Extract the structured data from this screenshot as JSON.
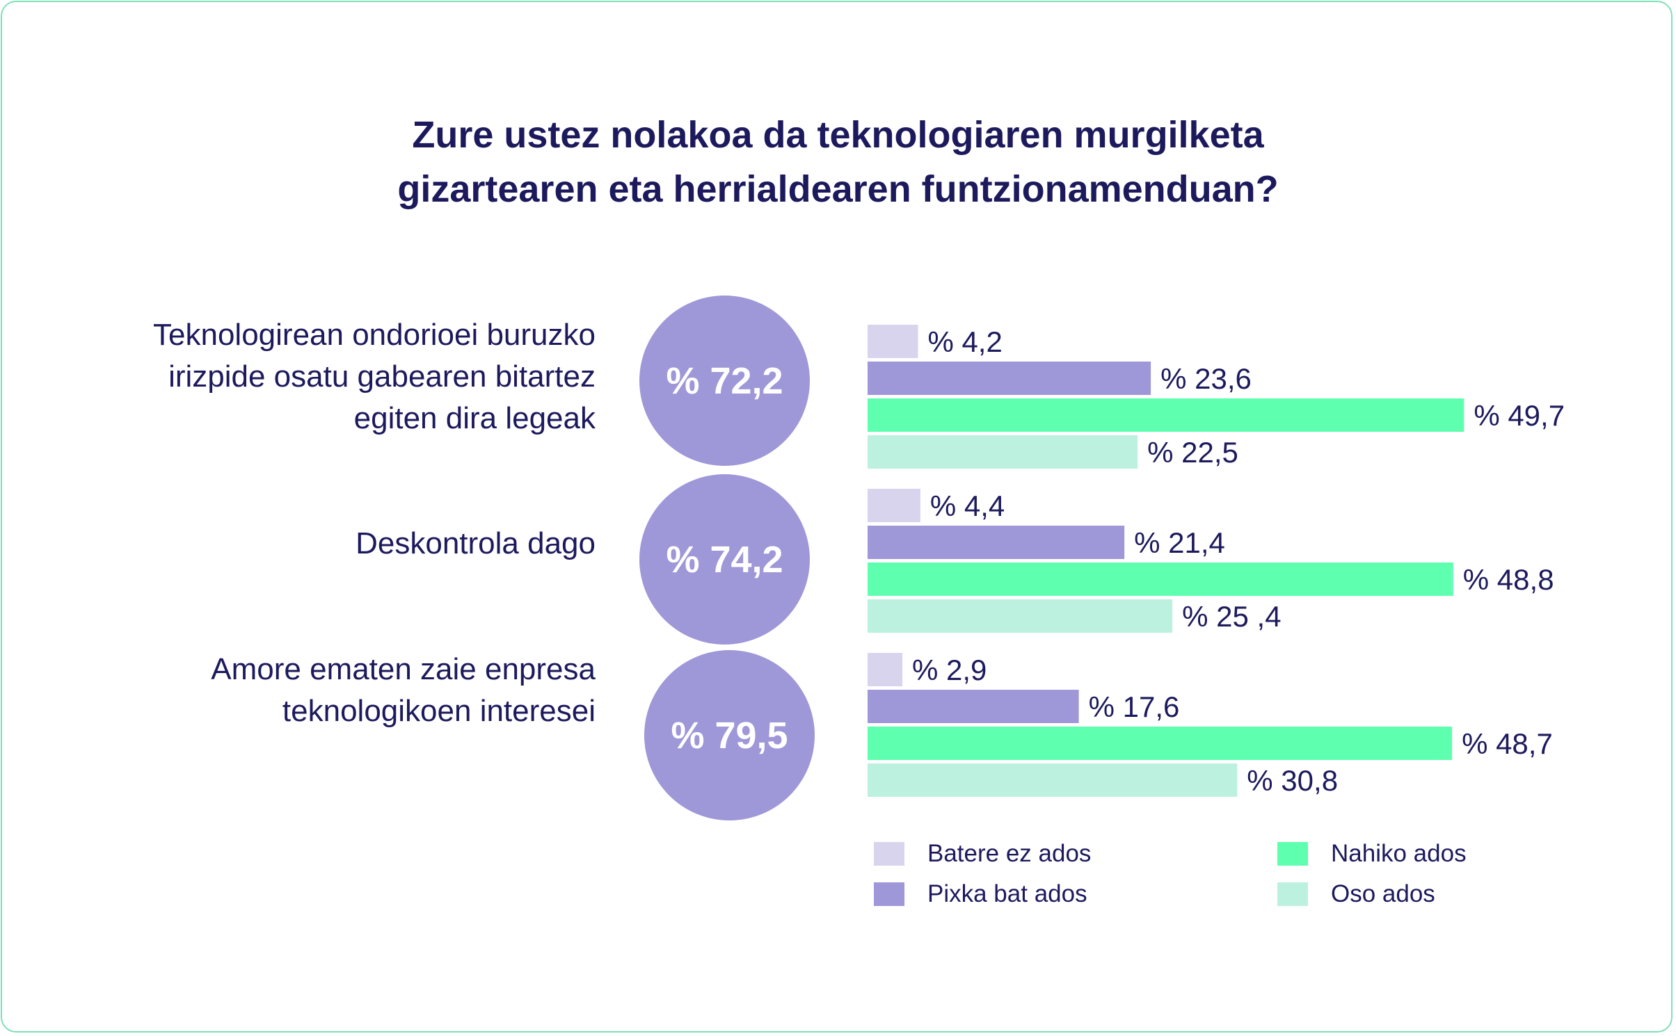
{
  "chart_data": {
    "type": "bar",
    "orientation": "horizontal",
    "title": "Zure ustez nolakoa da teknologiaren murgilketa gizartearen eta herrialdearen funtzionamenduan?",
    "title_lines": [
      "Zure ustez nolakoa da teknologiaren murgilketa",
      "gizartearen eta herrialdearen funtzionamenduan?"
    ],
    "categories": [
      "Teknologirean ondorioei buruzko irizpide osatu gabearen bitartez egiten dira legeak",
      "Deskontrola dago",
      "Amore ematen zaie enpresa teknologikoen interesei"
    ],
    "category_lines": [
      [
        "Teknologirean ondorioei buruzko",
        "irizpide osatu gabearen bitartez",
        "egiten dira legeak"
      ],
      [
        "Deskontrola dago"
      ],
      [
        "Amore ematen zaie enpresa",
        "teknologikoen interesei"
      ]
    ],
    "totals": [
      "% 72,2",
      "% 74,2",
      "% 79,5"
    ],
    "series": [
      {
        "name": "Batere ez ados",
        "color": "#d8d4ee",
        "values": [
          4.2,
          4.4,
          2.9
        ],
        "labels": [
          "% 4,2",
          "% 4,4",
          "% 2,9"
        ]
      },
      {
        "name": "Pixka bat ados",
        "color": "#9e97d8",
        "values": [
          23.6,
          21.4,
          17.6
        ],
        "labels": [
          "% 23,6",
          "% 21,4",
          "% 17,6"
        ]
      },
      {
        "name": "Nahiko ados",
        "color": "#5effaf",
        "values": [
          49.7,
          48.8,
          48.7
        ],
        "labels": [
          "% 49,7",
          "% 48,8",
          "% 48,7"
        ]
      },
      {
        "name": "Oso ados",
        "color": "#bcf1df",
        "values": [
          22.5,
          25.4,
          30.8
        ],
        "labels": [
          "% 22,5",
          "% 25 ,4",
          "% 30,8"
        ]
      }
    ],
    "xlim": [
      0,
      50
    ],
    "grid": false,
    "legend": "bottom"
  }
}
